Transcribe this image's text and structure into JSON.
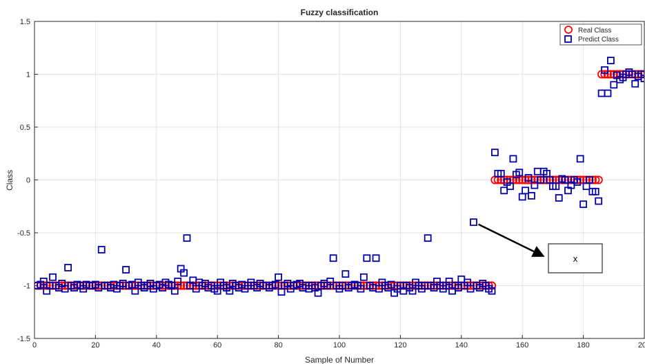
{
  "chart_data": {
    "type": "scatter",
    "title": "Fuzzy classification",
    "xlabel": "Sample of Number",
    "ylabel": "Class",
    "xlim": [
      0,
      200
    ],
    "ylim": [
      -1.5,
      1.5
    ],
    "xticks": [
      0,
      20,
      40,
      60,
      80,
      100,
      120,
      140,
      160,
      180,
      200
    ],
    "yticks": [
      -1.5,
      -1,
      -0.5,
      0,
      0.5,
      1,
      1.5
    ],
    "grid": true,
    "legend_position": "top-right",
    "series": [
      {
        "name": "Real Class",
        "marker": "circle",
        "color": "#ff0000",
        "segments": [
          {
            "x_start": 1,
            "x_end": 150,
            "y": -1
          },
          {
            "x_start": 151,
            "x_end": 185,
            "y": 0
          },
          {
            "x_start": 186,
            "x_end": 200,
            "y": 1
          }
        ]
      },
      {
        "name": "Predict Class",
        "marker": "square",
        "color": "#0000aa",
        "x": [
          1,
          2,
          3,
          4,
          5,
          6,
          7,
          8,
          9,
          10,
          11,
          12,
          13,
          14,
          15,
          16,
          17,
          18,
          19,
          20,
          21,
          22,
          23,
          24,
          25,
          26,
          27,
          28,
          29,
          30,
          31,
          32,
          33,
          34,
          35,
          36,
          37,
          38,
          39,
          40,
          41,
          42,
          43,
          44,
          45,
          46,
          47,
          48,
          49,
          50,
          51,
          52,
          53,
          54,
          55,
          56,
          57,
          58,
          59,
          60,
          61,
          62,
          63,
          64,
          65,
          66,
          67,
          68,
          69,
          70,
          71,
          72,
          73,
          74,
          75,
          76,
          77,
          78,
          79,
          80,
          81,
          82,
          83,
          84,
          85,
          86,
          87,
          88,
          89,
          90,
          91,
          92,
          93,
          94,
          95,
          96,
          97,
          98,
          99,
          100,
          101,
          102,
          103,
          104,
          105,
          106,
          107,
          108,
          109,
          110,
          111,
          112,
          113,
          114,
          115,
          116,
          117,
          118,
          119,
          120,
          121,
          122,
          123,
          124,
          125,
          126,
          127,
          128,
          129,
          130,
          131,
          132,
          133,
          134,
          135,
          136,
          137,
          138,
          139,
          140,
          141,
          142,
          143,
          144,
          145,
          146,
          147,
          148,
          149,
          150,
          151,
          152,
          153,
          154,
          155,
          156,
          157,
          158,
          159,
          160,
          161,
          162,
          163,
          164,
          165,
          166,
          167,
          168,
          169,
          170,
          171,
          172,
          173,
          174,
          175,
          176,
          177,
          178,
          179,
          180,
          181,
          182,
          183,
          184,
          185,
          186,
          187,
          188,
          189,
          190,
          191,
          192,
          193,
          194,
          195,
          196,
          197,
          198,
          199,
          200
        ],
        "y": [
          -1.0,
          -0.99,
          -0.96,
          -1.05,
          -1.0,
          -0.92,
          -1.0,
          -1.02,
          -0.98,
          -1.03,
          -0.83,
          -1.0,
          -1.02,
          -0.99,
          -1.0,
          -1.03,
          -0.99,
          -1.0,
          -1.0,
          -0.99,
          -1.02,
          -0.66,
          -1.0,
          -1.0,
          -1.02,
          -0.99,
          -1.03,
          -1.0,
          -0.98,
          -0.85,
          -1.0,
          -0.99,
          -1.05,
          -0.97,
          -1.0,
          -1.02,
          -1.0,
          -0.98,
          -1.03,
          -1.0,
          -0.99,
          -1.02,
          -0.97,
          -0.99,
          -1.0,
          -1.05,
          -0.96,
          -0.84,
          -0.88,
          -0.55,
          -1.0,
          -0.95,
          -1.03,
          -0.97,
          -1.0,
          -0.98,
          -1.02,
          -1.0,
          -1.03,
          -1.05,
          -0.97,
          -1.0,
          -1.02,
          -1.05,
          -0.98,
          -1.0,
          -1.02,
          -0.99,
          -1.03,
          -1.0,
          -0.97,
          -1.0,
          -1.02,
          -0.98,
          -1.0,
          -1.0,
          -1.02,
          -1.0,
          -0.99,
          -0.92,
          -1.06,
          -1.0,
          -0.98,
          -1.03,
          -1.0,
          -0.99,
          -0.98,
          -1.02,
          -1.0,
          -1.03,
          -1.0,
          -1.02,
          -1.07,
          -1.0,
          -0.98,
          -1.0,
          -0.96,
          -0.74,
          -1.0,
          -1.03,
          -1.0,
          -0.89,
          -1.02,
          -1.0,
          -0.99,
          -1.0,
          -1.03,
          -0.92,
          -0.74,
          -1.0,
          -1.02,
          -0.74,
          -1.03,
          -0.97,
          -1.0,
          -1.02,
          -0.99,
          -1.07,
          -1.03,
          -1.0,
          -1.05,
          -1.0,
          -1.02,
          -1.05,
          -0.97,
          -1.0,
          -1.03,
          -1.0,
          -0.55,
          -1.0,
          -1.02,
          -0.96,
          -1.0,
          -1.03,
          -1.0,
          -0.96,
          -1.05,
          -1.0,
          -1.02,
          -0.94,
          -1.0,
          -0.97,
          -1.03,
          -0.4,
          -1.0,
          -1.02,
          -0.98,
          -1.0,
          -1.03,
          -1.05,
          0.26,
          0.06,
          0.06,
          -0.1,
          -0.02,
          -0.06,
          0.2,
          0.05,
          0.07,
          -0.16,
          -0.1,
          0.02,
          -0.15,
          -0.05,
          0.08,
          0.0,
          0.08,
          0.06,
          0.0,
          -0.06,
          -0.06,
          -0.17,
          0.01,
          0.0,
          -0.1,
          -0.05,
          0.0,
          -0.02,
          0.2,
          -0.23,
          -0.06,
          0.0,
          -0.11,
          -0.11,
          -0.2,
          0.82,
          1.04,
          0.82,
          1.13,
          0.9,
          0.99,
          0.95,
          0.97,
          1.0,
          1.02,
          1.0,
          0.91,
          0.98,
          1.0,
          0.96
        ]
      }
    ],
    "annotations": [
      {
        "text": "x",
        "points_to": [
          144,
          -0.4
        ]
      }
    ]
  }
}
